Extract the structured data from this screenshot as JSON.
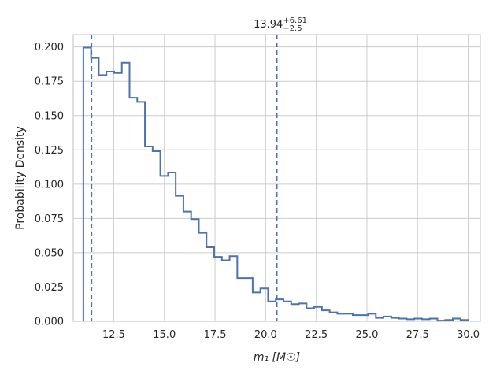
{
  "chart_data": {
    "type": "histogram",
    "title": {
      "value": "13.94",
      "sup": "+6.61",
      "sub": "−2.5"
    },
    "xlabel": "m₁ [M☉]",
    "ylabel": "Probability Density",
    "xlim": [
      10.5,
      30.6
    ],
    "ylim": [
      0,
      0.209
    ],
    "xticks": [
      12.5,
      15.0,
      17.5,
      20.0,
      22.5,
      25.0,
      27.5,
      30.0
    ],
    "xtick_labels": [
      "12.5",
      "15.0",
      "17.5",
      "20.0",
      "22.5",
      "25.0",
      "27.5",
      "30.0"
    ],
    "yticks": [
      0.0,
      0.025,
      0.05,
      0.075,
      0.1,
      0.125,
      0.15,
      0.175,
      0.2
    ],
    "ytick_labels": [
      "0.000",
      "0.025",
      "0.050",
      "0.075",
      "0.100",
      "0.125",
      "0.150",
      "0.175",
      "0.200"
    ],
    "grid": true,
    "series_color": "#4c72b0",
    "bins": {
      "edges": [
        11.0,
        11.38,
        11.76,
        12.14,
        12.52,
        12.9,
        13.28,
        13.66,
        14.04,
        14.42,
        14.8,
        15.18,
        15.56,
        15.94,
        16.32,
        16.7,
        17.08,
        17.46,
        17.84,
        18.22,
        18.6,
        18.98,
        19.36,
        19.74,
        20.12,
        20.5,
        20.88,
        21.26,
        21.64,
        22.02,
        22.4,
        22.78,
        23.16,
        23.54,
        23.92,
        24.3,
        24.68,
        25.06,
        25.44,
        25.82,
        26.2,
        26.58,
        26.96,
        27.34,
        27.72,
        28.1,
        28.48,
        28.86,
        29.24,
        29.62,
        30.0
      ],
      "densities": [
        0.1995,
        0.192,
        0.1795,
        0.182,
        0.181,
        0.1885,
        0.163,
        0.16,
        0.1275,
        0.124,
        0.106,
        0.1085,
        0.0915,
        0.08,
        0.0745,
        0.0645,
        0.054,
        0.047,
        0.0445,
        0.0475,
        0.0315,
        0.0315,
        0.021,
        0.024,
        0.0145,
        0.016,
        0.0145,
        0.0125,
        0.013,
        0.0095,
        0.0105,
        0.008,
        0.0065,
        0.0055,
        0.0055,
        0.0045,
        0.0045,
        0.0055,
        0.0025,
        0.0035,
        0.0025,
        0.002,
        0.0015,
        0.002,
        0.0015,
        0.002,
        0.0005,
        0.001,
        0.002,
        0.001
      ]
    },
    "vlines": [
      11.4,
      20.55
    ]
  }
}
